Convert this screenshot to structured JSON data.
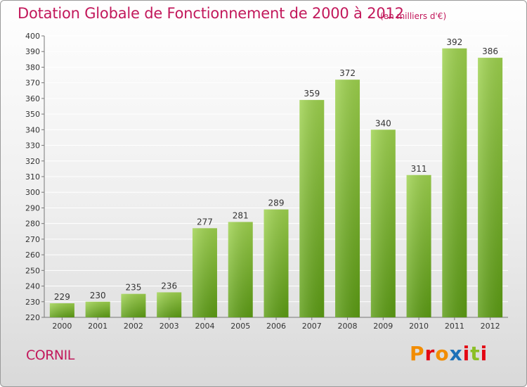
{
  "header": {
    "title": "Dotation Globale de Fonctionnement de 2000 à 2012",
    "subtitle": "(en milliers d'€)"
  },
  "footer": {
    "commune": "CORNIL",
    "logo_text": "Proxiti",
    "logo_colors": [
      "#f28c00",
      "#e30613",
      "#f28c00",
      "#1d71b8",
      "#e30613",
      "#8cbf26",
      "#e30613"
    ]
  },
  "colors": {
    "bar_top": "#9ed24e",
    "bar_bottom": "#5c9c14",
    "text": "#c2185b",
    "grid": "#ffffff"
  },
  "chart_data": {
    "type": "bar",
    "categories": [
      "2000",
      "2001",
      "2002",
      "2003",
      "2004",
      "2005",
      "2006",
      "2007",
      "2008",
      "2009",
      "2010",
      "2011",
      "2012"
    ],
    "values": [
      229,
      230,
      235,
      236,
      277,
      281,
      289,
      359,
      372,
      340,
      311,
      392,
      386
    ],
    "data_labels": [
      "229",
      "230",
      "235",
      "236",
      "277",
      "281",
      "289",
      "359",
      "372",
      "340",
      "311",
      "392",
      "386"
    ],
    "ylim": [
      220,
      400
    ],
    "yticks": [
      220,
      230,
      240,
      250,
      260,
      270,
      280,
      290,
      300,
      310,
      320,
      330,
      340,
      350,
      360,
      370,
      380,
      390,
      400
    ],
    "ytick_labels": [
      "220",
      "230",
      "240",
      "250",
      "260",
      "270",
      "280",
      "290",
      "300",
      "310",
      "320",
      "330",
      "340",
      "350",
      "360",
      "370",
      "380",
      "390",
      "400"
    ],
    "grid": true,
    "title": "Dotation Globale de Fonctionnement de 2000 à 2012",
    "subtitle": "(en milliers d'€)",
    "xlabel": "",
    "ylabel": ""
  }
}
